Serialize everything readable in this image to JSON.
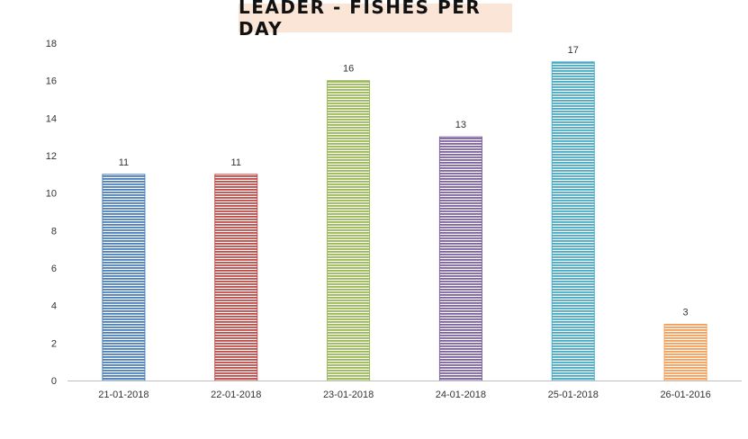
{
  "chart_data": {
    "type": "bar",
    "title": "LEADER - FISHES PER DAY",
    "categories": [
      "21-01-2018",
      "22-01-2018",
      "23-01-2018",
      "24-01-2018",
      "25-01-2018",
      "26-01-2016"
    ],
    "values": [
      11,
      11,
      16,
      13,
      17,
      3
    ],
    "colors": [
      "#4a7ebb",
      "#be4b48",
      "#98b954",
      "#7d60a0",
      "#46aac5",
      "#f59d56"
    ],
    "ylim": [
      0,
      18
    ],
    "yticks": [
      0,
      2,
      4,
      6,
      8,
      10,
      12,
      14,
      16,
      18
    ],
    "grid": false,
    "legend": "none",
    "bar_pattern": "horizontal-stripes"
  }
}
